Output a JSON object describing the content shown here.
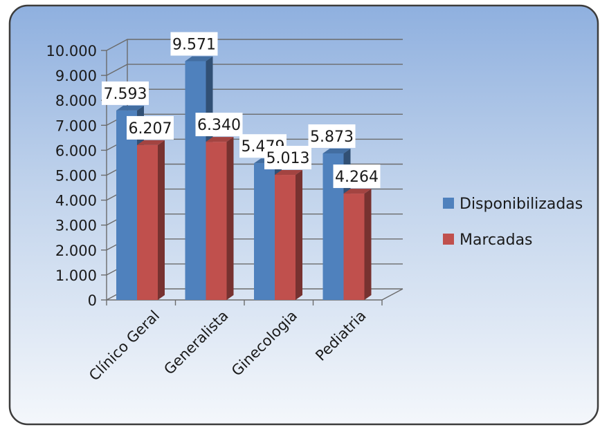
{
  "chart_data": {
    "type": "bar",
    "categories": [
      "Clínico Geral",
      "Generalista",
      "Ginecologia",
      "Pediatria"
    ],
    "series": [
      {
        "name": "Disponibilizadas",
        "values": [
          7593,
          9571,
          5479,
          5873
        ],
        "labels": [
          "7.593",
          "9.571",
          "5.479",
          "5.873"
        ],
        "color": "#4f81bd"
      },
      {
        "name": "Marcadas",
        "values": [
          6207,
          6340,
          5013,
          4264
        ],
        "labels": [
          "6.207",
          "6.340",
          "5.013",
          "4.264"
        ],
        "color": "#c0504d"
      }
    ],
    "ylim": [
      0,
      10000
    ],
    "yticks": [
      "0",
      "1.000",
      "2.000",
      "3.000",
      "4.000",
      "5.000",
      "6.000",
      "7.000",
      "8.000",
      "9.000",
      "10.000"
    ],
    "grid": true,
    "legend": "right",
    "style": "3d-clustered-column"
  }
}
